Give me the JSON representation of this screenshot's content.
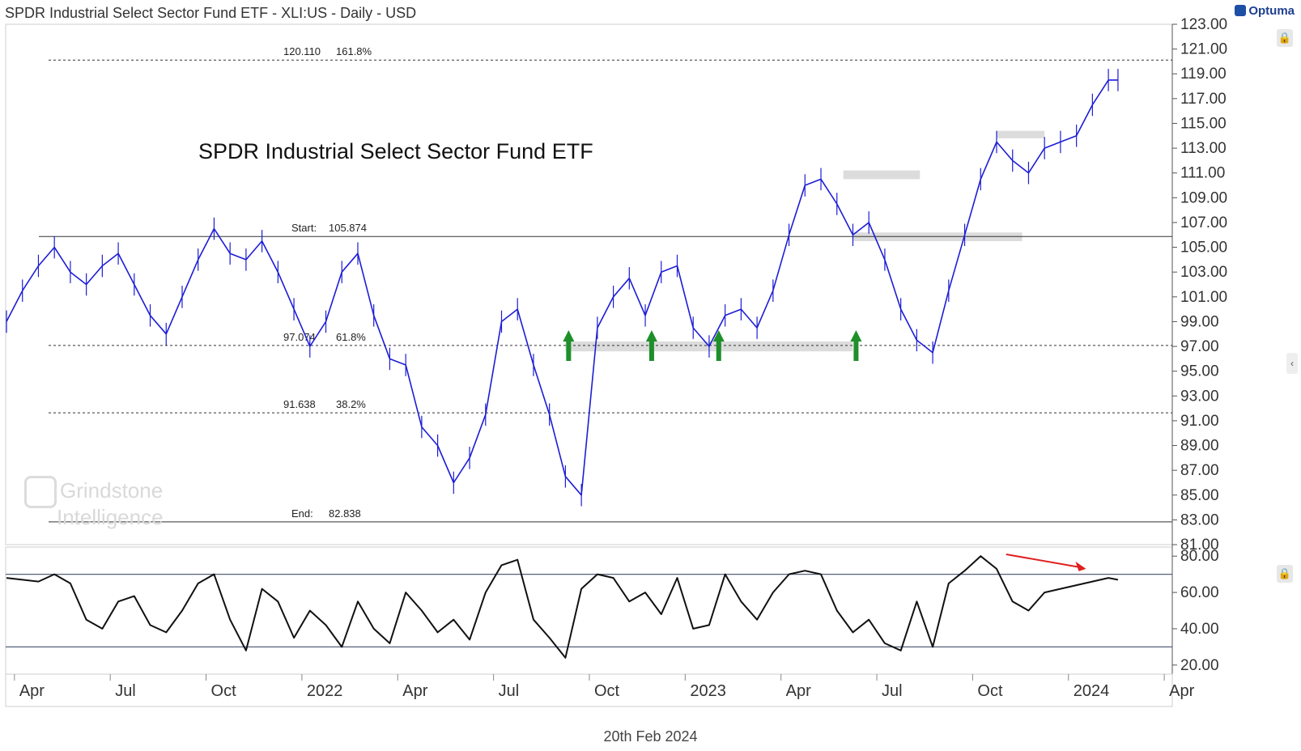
{
  "header": {
    "title": "SPDR Industrial Select Sector Fund ETF - XLI:US - Daily - USD",
    "brand": "Optuma"
  },
  "footer": {
    "date": "20th Feb 2024"
  },
  "watermark": {
    "line1": "Grindstone",
    "line2": "Intelligence"
  },
  "colors": {
    "price": "#1d1dd6",
    "rsi": "#111111",
    "fib_line": "#333333",
    "zone": "#dcdcdc",
    "arrow_green": "#1f8f2a",
    "arrow_red": "#e02020",
    "grid": "#bbbbbb"
  },
  "chart_data": [
    {
      "type": "line",
      "name": "price",
      "title": "SPDR Industrial Select Sector Fund ETF",
      "ylim": [
        81,
        123
      ],
      "y_ticks": [
        "123.00",
        "121.00",
        "119.00",
        "117.00",
        "115.00",
        "113.00",
        "111.00",
        "109.00",
        "107.00",
        "105.00",
        "103.00",
        "101.00",
        "99.00",
        "97.00",
        "95.00",
        "93.00",
        "91.00",
        "89.00",
        "87.00",
        "85.00",
        "83.00",
        "81.00"
      ],
      "x_ticks": [
        "Apr",
        "Jul",
        "Oct",
        "2022",
        "Apr",
        "Jul",
        "Oct",
        "2023",
        "Apr",
        "Jul",
        "Oct",
        "2024",
        "Apr"
      ],
      "x_range_months": [
        0,
        36.5
      ],
      "series": [
        {
          "name": "XLI close",
          "x_months": [
            0,
            0.5,
            1,
            1.5,
            2,
            2.5,
            3,
            3.5,
            4,
            4.5,
            5,
            5.5,
            6,
            6.5,
            7,
            7.5,
            8,
            8.5,
            9,
            9.5,
            10,
            10.5,
            11,
            11.5,
            12,
            12.5,
            13,
            13.5,
            14,
            14.5,
            15,
            15.5,
            16,
            16.5,
            17,
            17.5,
            18,
            18.5,
            19,
            19.5,
            20,
            20.5,
            21,
            21.5,
            22,
            22.5,
            23,
            23.5,
            24,
            24.5,
            25,
            25.5,
            26,
            26.5,
            27,
            27.5,
            28,
            28.5,
            29,
            29.5,
            30,
            30.5,
            31,
            31.5,
            32,
            32.5,
            33,
            33.5,
            34,
            34.5,
            34.8
          ],
          "values": [
            99,
            101.5,
            103.5,
            105,
            103,
            102,
            103.5,
            104.5,
            102,
            99.5,
            98,
            101,
            104,
            106.5,
            104.5,
            104,
            105.5,
            103,
            100,
            97,
            99,
            103,
            104.5,
            99.5,
            96,
            95.5,
            90.5,
            89,
            86,
            88,
            91.5,
            99,
            100,
            95.5,
            91.5,
            86.5,
            85,
            98.5,
            101,
            102.5,
            99.5,
            103,
            103.5,
            98.5,
            97,
            99.5,
            100,
            98.5,
            101.5,
            106,
            110,
            110.5,
            108.5,
            106,
            107,
            104,
            100,
            97.5,
            96.5,
            101.5,
            106,
            110.5,
            113.5,
            112,
            111,
            113,
            113.5,
            114,
            116.5,
            118.5,
            118.5
          ]
        }
      ],
      "levels": [
        {
          "label": "120.110",
          "pct": "161.8%",
          "value": 120.11
        },
        {
          "label": "Start:",
          "pct_value": "105.874",
          "value": 105.874
        },
        {
          "label": "97.074",
          "pct": "61.8%",
          "value": 97.074
        },
        {
          "label": "91.638",
          "pct": "38.2%",
          "value": 91.638
        },
        {
          "label": "End:",
          "pct_value": "82.838",
          "value": 82.838
        }
      ],
      "support_zones": [
        {
          "x_start": 26.5,
          "x_end": 31.8,
          "low": 105.5,
          "high": 106.2
        },
        {
          "x_start": 17.5,
          "x_end": 26.5,
          "low": 96.6,
          "high": 97.4
        },
        {
          "x_start": 26.2,
          "x_end": 28.6,
          "low": 110.5,
          "high": 111.2
        },
        {
          "x_start": 31.0,
          "x_end": 32.5,
          "low": 113.8,
          "high": 114.4
        }
      ],
      "up_arrows_months": [
        17.6,
        20.2,
        22.3,
        26.6
      ]
    },
    {
      "type": "line",
      "name": "rsi",
      "ylim": [
        15,
        85
      ],
      "y_ticks": [
        "80.00",
        "60.00",
        "40.00",
        "20.00"
      ],
      "bands": [
        70,
        30
      ],
      "series": [
        {
          "name": "RSI",
          "x_months": [
            0,
            0.5,
            1,
            1.5,
            2,
            2.5,
            3,
            3.5,
            4,
            4.5,
            5,
            5.5,
            6,
            6.5,
            7,
            7.5,
            8,
            8.5,
            9,
            9.5,
            10,
            10.5,
            11,
            11.5,
            12,
            12.5,
            13,
            13.5,
            14,
            14.5,
            15,
            15.5,
            16,
            16.5,
            17,
            17.5,
            18,
            18.5,
            19,
            19.5,
            20,
            20.5,
            21,
            21.5,
            22,
            22.5,
            23,
            23.5,
            24,
            24.5,
            25,
            25.5,
            26,
            26.5,
            27,
            27.5,
            28,
            28.5,
            29,
            29.5,
            30,
            30.5,
            31,
            31.5,
            32,
            32.5,
            33,
            33.5,
            34,
            34.5,
            34.8
          ],
          "values": [
            68,
            67,
            66,
            70,
            65,
            45,
            40,
            55,
            58,
            42,
            38,
            50,
            65,
            70,
            45,
            28,
            62,
            55,
            35,
            50,
            42,
            30,
            55,
            40,
            32,
            60,
            50,
            38,
            45,
            34,
            60,
            75,
            78,
            45,
            35,
            24,
            62,
            70,
            68,
            55,
            60,
            48,
            68,
            40,
            42,
            70,
            55,
            45,
            60,
            70,
            72,
            70,
            50,
            38,
            45,
            32,
            28,
            55,
            30,
            65,
            72,
            80,
            73,
            55,
            50,
            60,
            62,
            64,
            66,
            68,
            67
          ]
        }
      ],
      "annotation": "red down arrow (divergence)"
    }
  ]
}
